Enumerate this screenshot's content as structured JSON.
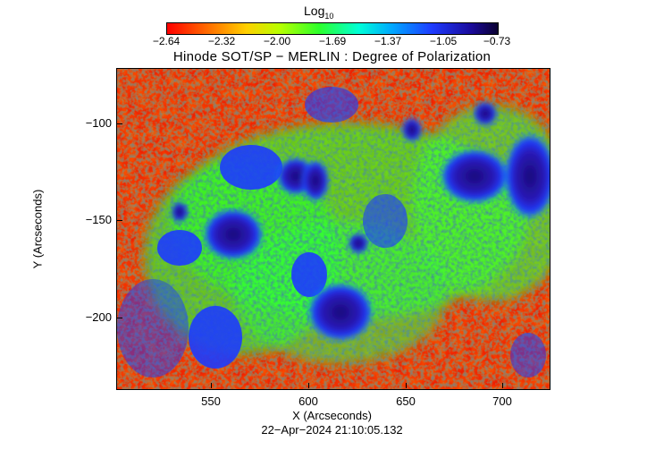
{
  "colorbar": {
    "label": "Log",
    "label_subscript": "10",
    "ticks": [
      "−2.64",
      "−2.32",
      "−2.00",
      "−1.69",
      "−1.37",
      "−1.05",
      "−0.73"
    ],
    "colors": [
      "#ff0000",
      "#ff6a00",
      "#ffd000",
      "#b8ff00",
      "#2cff2c",
      "#00ffd8",
      "#00a8ff",
      "#1e3cff",
      "#1a0a9a",
      "#0a0030"
    ]
  },
  "plot": {
    "title": "Hinode SOT/SP − MERLIN : Degree of Polarization",
    "x_label": "X (Arcseconds)",
    "y_label": "Y (Arcseconds)",
    "x_ticks": [
      "550",
      "600",
      "650",
      "700"
    ],
    "y_ticks": [
      "−100",
      "−150",
      "−200"
    ],
    "timestamp": "22−Apr−2024 21:10:05.132"
  }
}
